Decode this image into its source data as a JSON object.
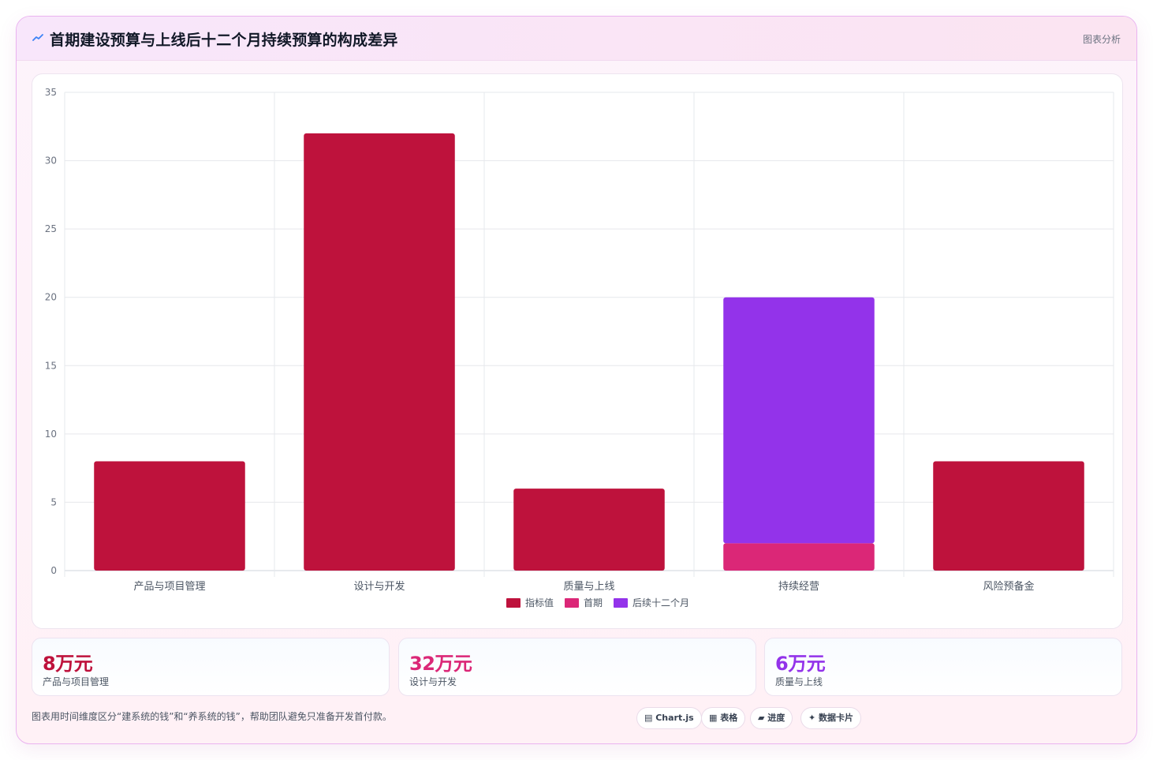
{
  "header": {
    "title": "首期建设预算与上线后十二个月持续预算的构成差异",
    "tag": "图表分析",
    "icon": "sparkline-icon",
    "icon_color": "#3b82f6"
  },
  "chart_data": {
    "type": "bar",
    "stacked": true,
    "categories": [
      "产品与项目管理",
      "设计与开发",
      "质量与上线",
      "持续经营",
      "风险预备金"
    ],
    "series": [
      {
        "name": "指标值",
        "color": "#be123c",
        "values": [
          8,
          32,
          6,
          0,
          8
        ]
      },
      {
        "name": "首期",
        "color": "#db2777",
        "values": [
          0,
          0,
          0,
          2,
          0
        ]
      },
      {
        "name": "后续十二个月",
        "color": "#9333ea",
        "values": [
          0,
          0,
          0,
          18,
          0
        ]
      }
    ],
    "ylim": [
      0,
      35
    ],
    "yticks": [
      0,
      5,
      10,
      15,
      20,
      25,
      30,
      35
    ],
    "grid": true,
    "legend_position": "bottom"
  },
  "cards": [
    {
      "value": "8万元",
      "label": "产品与项目管理",
      "color": "#be123c"
    },
    {
      "value": "32万元",
      "label": "设计与开发",
      "color": "#db2777"
    },
    {
      "value": "6万元",
      "label": "质量与上线",
      "color": "#9333ea"
    }
  ],
  "footer": {
    "note": "图表用时间维度区分“建系统的钱”和“养系统的钱”，帮助团队避免只准备开发首付款。",
    "chips": [
      {
        "icon": "chart-icon",
        "label": "▤ Chart.js"
      },
      {
        "icon": "table-icon",
        "label": "▦ 表格"
      },
      {
        "icon": "progress-icon",
        "label": "▰ 进度"
      },
      {
        "icon": "card-icon",
        "label": "✦ 数据卡片"
      }
    ]
  }
}
